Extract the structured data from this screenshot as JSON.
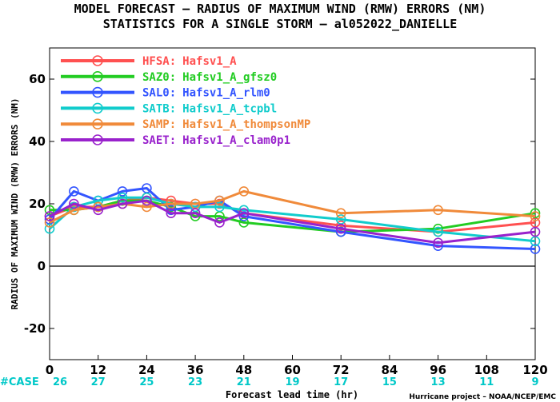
{
  "chart_data": {
    "type": "line",
    "title": "MODEL FORECAST – RADIUS OF MAXIMUM WIND (RMW) ERRORS (NM)",
    "subtitle": "STATISTICS FOR A SINGLE STORM – al052022_DANIELLE",
    "ylabel": "RADIUS OF MAXIMUM WIND (RMW) ERRORS (NM)",
    "xlabel": "Forecast lead time (hr)",
    "credit": "Hurricane project – NOAA/NCEP/EMC",
    "xlim": [
      0,
      120
    ],
    "ylim": [
      -30,
      70
    ],
    "x_ticks": [
      0,
      12,
      24,
      36,
      48,
      60,
      72,
      84,
      96,
      108,
      120
    ],
    "y_ticks": [
      -20,
      0,
      20,
      40,
      60
    ],
    "y_tick_labels": [
      "-20",
      "0",
      "20",
      "40",
      "60"
    ],
    "x_tick_labels": [
      "0",
      "12",
      "24",
      "36",
      "48",
      "60",
      "72",
      "84",
      "96",
      "108",
      "120"
    ],
    "grid": false,
    "zero_line": true,
    "legend_position": "top-left",
    "case_label": "#CASE",
    "case_color": "#00c8c8",
    "case_counts": [
      "26",
      "27",
      "25",
      "23",
      "21",
      "19",
      "17",
      "15",
      "13",
      "11",
      "9"
    ],
    "x": [
      0,
      6,
      12,
      18,
      24,
      30,
      36,
      42,
      48,
      72,
      96,
      120
    ],
    "series": [
      {
        "name": "HFSA:",
        "label": "Hafsv1_A",
        "color": "#ff5050",
        "values": [
          16,
          19,
          19,
          21,
          22,
          21,
          20,
          20,
          17,
          13,
          11,
          14
        ]
      },
      {
        "name": "SAZ0:",
        "label": "Hafsv1_A_gfsz0",
        "color": "#22cc22",
        "values": [
          18,
          18,
          19,
          21,
          21,
          19,
          16,
          16,
          14,
          11,
          12,
          17
        ]
      },
      {
        "name": "SAL0:",
        "label": "Hafsv1_A_rlm0",
        "color": "#3355ff",
        "values": [
          15,
          24,
          21,
          24,
          25,
          18,
          19,
          21,
          16,
          11,
          6.5,
          5.5
        ]
      },
      {
        "name": "SATB:",
        "label": "Hafsv1_A_tcpbl",
        "color": "#11cccc",
        "values": [
          12,
          19,
          21,
          22,
          22,
          20,
          19,
          19,
          18,
          15,
          11,
          8
        ]
      },
      {
        "name": "SAMP:",
        "label": "Hafsv1_A_thompsonMP",
        "color": "#f08a3a",
        "values": [
          14,
          18,
          19,
          20,
          19,
          20,
          20,
          21,
          24,
          17,
          18,
          16
        ]
      },
      {
        "name": "SAET:",
        "label": "Hafsv1_A_clam0p1",
        "color": "#9922cc",
        "values": [
          16,
          20,
          18,
          20,
          21,
          17,
          17,
          14,
          17,
          12,
          7.5,
          11
        ]
      }
    ]
  }
}
